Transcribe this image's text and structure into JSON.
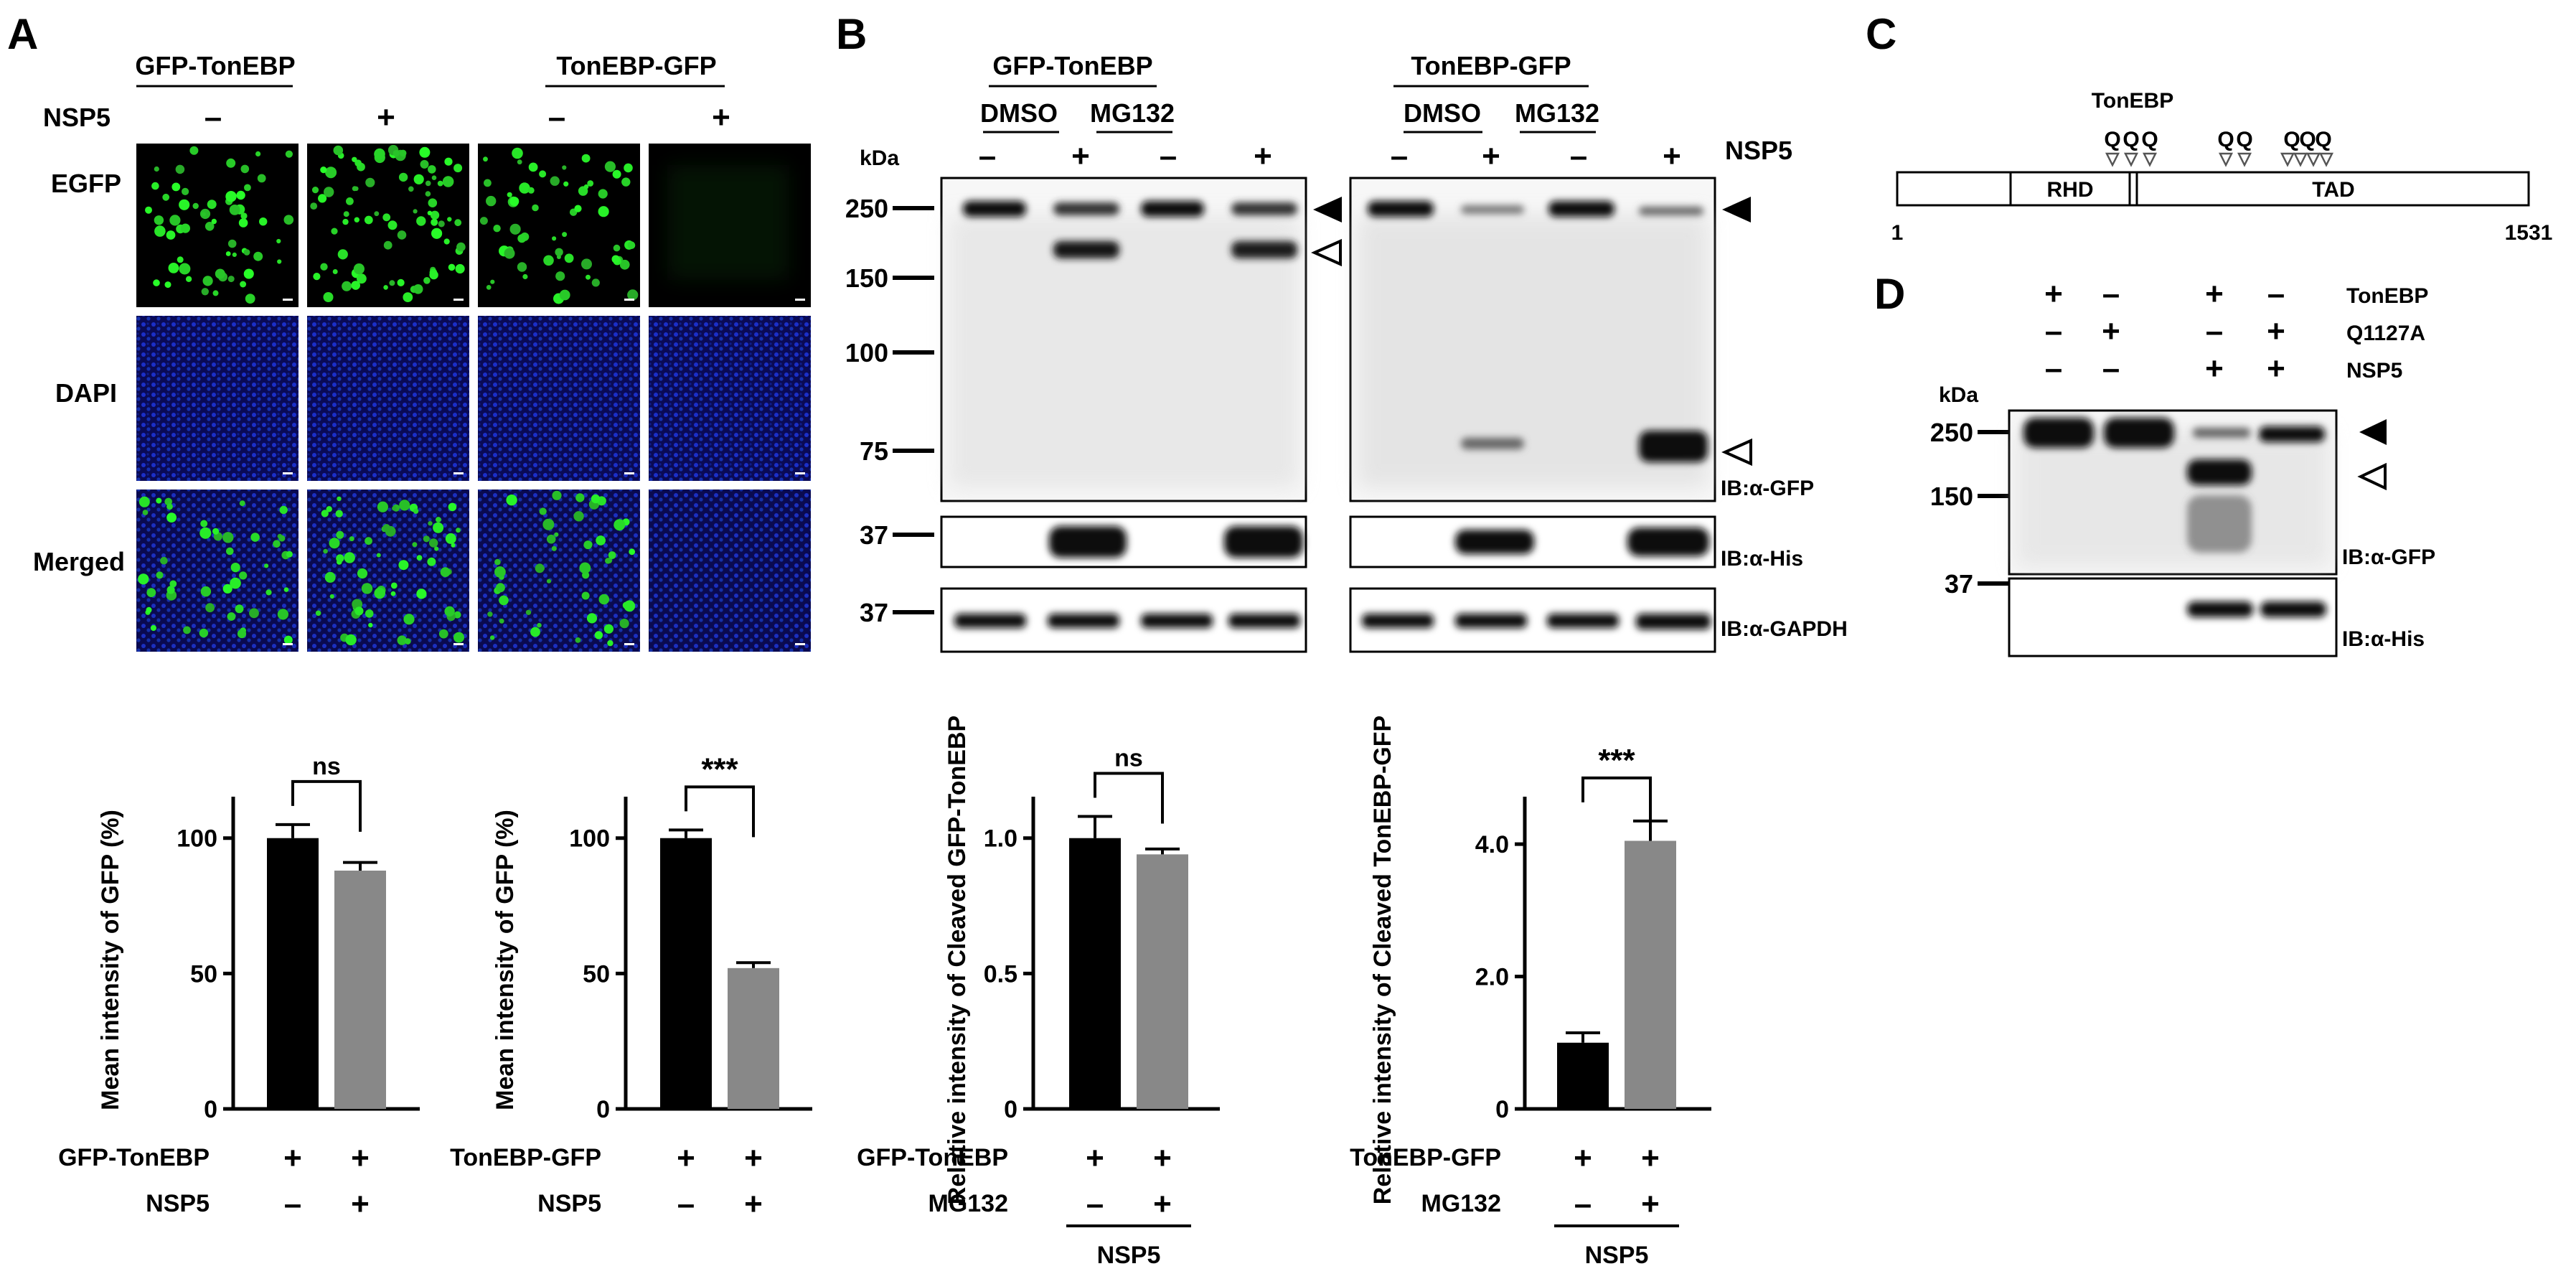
{
  "panel_labels": {
    "a": "A",
    "b": "B",
    "c": "C",
    "d": "D"
  },
  "common": {
    "plus": "+",
    "minus": "–",
    "kda": "kDa",
    "ns": "ns",
    "stars": "***"
  },
  "panelA": {
    "groups": [
      "GFP-TonEBP",
      "TonEBP-GFP"
    ],
    "nsp5_label": "NSP5",
    "rows": [
      "EGFP",
      "DAPI",
      "Merged"
    ]
  },
  "panelB": {
    "groups": [
      "GFP-TonEBP",
      "TonEBP-GFP"
    ],
    "treatments": [
      "DMSO",
      "MG132"
    ],
    "nsp5_label": "NSP5",
    "markers": [
      "250",
      "150",
      "100",
      "75",
      "37",
      "37"
    ],
    "ib_labels": [
      "IB:α-GFP",
      "IB:α-His",
      "IB:α-GAPDH"
    ]
  },
  "panelC": {
    "tonebp_label": "TonEBP",
    "domains": [
      "RHD",
      "TAD"
    ],
    "start": "1",
    "end": "1531",
    "site_label": "Q"
  },
  "panelD": {
    "conditions": [
      "TonEBP",
      "Q1127A",
      "NSP5"
    ],
    "markers": [
      "250",
      "150",
      "37"
    ],
    "ib_labels": [
      "IB:α-GFP",
      "IB:α-His"
    ]
  },
  "chart_data": [
    {
      "type": "bar",
      "ylabel": "Mean intensity of GFP (%)",
      "yticks": [
        "0",
        "50",
        "100"
      ],
      "ylim": [
        0,
        110
      ],
      "row_labels": [
        "GFP-TonEBP",
        "NSP5"
      ],
      "values": [
        100,
        88
      ],
      "errors": [
        5,
        3
      ],
      "colors": [
        "#000000",
        "#888888"
      ],
      "significance": "ns"
    },
    {
      "type": "bar",
      "ylabel": "Mean intensity of GFP (%)",
      "yticks": [
        "0",
        "50",
        "100"
      ],
      "ylim": [
        0,
        110
      ],
      "row_labels": [
        "TonEBP-GFP",
        "NSP5"
      ],
      "values": [
        100,
        52
      ],
      "errors": [
        3,
        2
      ],
      "colors": [
        "#000000",
        "#888888"
      ],
      "significance": "***"
    },
    {
      "type": "bar",
      "ylabel": "Relative intensity of Cleaved GFP-TonEBP",
      "yticks": [
        "0",
        "0.5",
        "1.0"
      ],
      "ylim": [
        0,
        1.1
      ],
      "row_labels": [
        "GFP-TonEBP",
        "MG132"
      ],
      "group_label": "NSP5",
      "values": [
        1.0,
        0.94
      ],
      "errors": [
        0.08,
        0.02
      ],
      "colors": [
        "#000000",
        "#888888"
      ],
      "significance": "ns"
    },
    {
      "type": "bar",
      "ylabel": "Relative intensity of Cleaved TonEBP-GFP",
      "yticks": [
        "0",
        "2.0",
        "4.0"
      ],
      "ylim": [
        0,
        4.5
      ],
      "row_labels": [
        "TonEBP-GFP",
        "MG132"
      ],
      "group_label": "NSP5",
      "values": [
        1.0,
        4.05
      ],
      "errors": [
        0.15,
        0.3
      ],
      "colors": [
        "#000000",
        "#888888"
      ],
      "significance": "***"
    }
  ]
}
